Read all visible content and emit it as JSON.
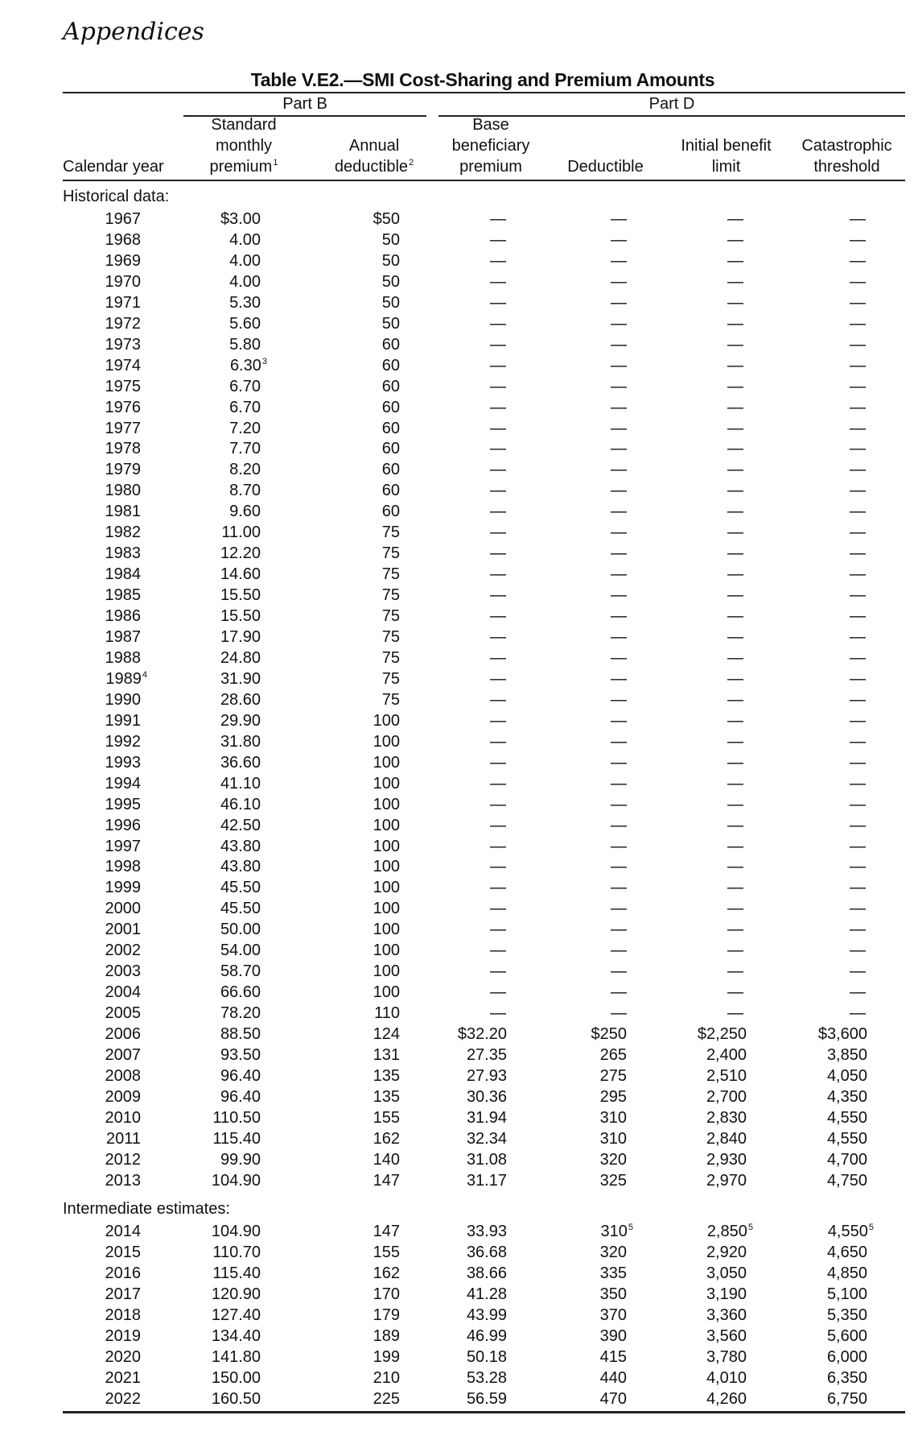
{
  "section_heading": "Appendices",
  "table": {
    "title": "Table V.E2.—SMI Cost-Sharing and Premium Amounts",
    "groups": {
      "part_b": "Part B",
      "part_d": "Part D"
    },
    "columns": {
      "year": "Calendar year",
      "std_premium": [
        "Standard",
        "monthly",
        "premium"
      ],
      "std_premium_note": "1",
      "annual_deductible": [
        "Annual",
        "deductible"
      ],
      "annual_deductible_note": "2",
      "base_premium": [
        "Base",
        "beneficiary",
        "premium"
      ],
      "deductible": "Deductible",
      "ibl": [
        "Initial benefit",
        "limit"
      ],
      "catastrophic": [
        "Catastrophic",
        "threshold"
      ]
    },
    "sections": [
      {
        "label": "Historical data:",
        "rows": [
          [
            "1967",
            "$3.00",
            "$50",
            null,
            null,
            null,
            null
          ],
          [
            "1968",
            "4.00",
            "50",
            null,
            null,
            null,
            null
          ],
          [
            "1969",
            "4.00",
            "50",
            null,
            null,
            null,
            null
          ],
          [
            "1970",
            "4.00",
            "50",
            null,
            null,
            null,
            null
          ],
          [
            "1971",
            "5.30",
            "50",
            null,
            null,
            null,
            null
          ],
          [
            "1972",
            "5.60",
            "50",
            null,
            null,
            null,
            null
          ],
          [
            "1973",
            "5.80",
            "60",
            null,
            null,
            null,
            null
          ],
          [
            "1974",
            "6.30^3",
            "60",
            null,
            null,
            null,
            null
          ],
          [
            "1975",
            "6.70",
            "60",
            null,
            null,
            null,
            null
          ],
          [
            "1976",
            "6.70",
            "60",
            null,
            null,
            null,
            null
          ],
          [
            "1977",
            "7.20",
            "60",
            null,
            null,
            null,
            null
          ],
          [
            "1978",
            "7.70",
            "60",
            null,
            null,
            null,
            null
          ],
          [
            "1979",
            "8.20",
            "60",
            null,
            null,
            null,
            null
          ],
          [
            "1980",
            "8.70",
            "60",
            null,
            null,
            null,
            null
          ],
          [
            "1981",
            "9.60",
            "60",
            null,
            null,
            null,
            null
          ],
          [
            "1982",
            "11.00",
            "75",
            null,
            null,
            null,
            null
          ],
          [
            "1983",
            "12.20",
            "75",
            null,
            null,
            null,
            null
          ],
          [
            "1984",
            "14.60",
            "75",
            null,
            null,
            null,
            null
          ],
          [
            "1985",
            "15.50",
            "75",
            null,
            null,
            null,
            null
          ],
          [
            "1986",
            "15.50",
            "75",
            null,
            null,
            null,
            null
          ],
          [
            "1987",
            "17.90",
            "75",
            null,
            null,
            null,
            null
          ],
          [
            "1988",
            "24.80",
            "75",
            null,
            null,
            null,
            null
          ],
          [
            "1989^4",
            "31.90",
            "75",
            null,
            null,
            null,
            null
          ],
          [
            "1990",
            "28.60",
            "75",
            null,
            null,
            null,
            null
          ],
          [
            "1991",
            "29.90",
            "100",
            null,
            null,
            null,
            null
          ],
          [
            "1992",
            "31.80",
            "100",
            null,
            null,
            null,
            null
          ],
          [
            "1993",
            "36.60",
            "100",
            null,
            null,
            null,
            null
          ],
          [
            "1994",
            "41.10",
            "100",
            null,
            null,
            null,
            null
          ],
          [
            "1995",
            "46.10",
            "100",
            null,
            null,
            null,
            null
          ],
          [
            "1996",
            "42.50",
            "100",
            null,
            null,
            null,
            null
          ],
          [
            "1997",
            "43.80",
            "100",
            null,
            null,
            null,
            null
          ],
          [
            "1998",
            "43.80",
            "100",
            null,
            null,
            null,
            null
          ],
          [
            "1999",
            "45.50",
            "100",
            null,
            null,
            null,
            null
          ],
          [
            "2000",
            "45.50",
            "100",
            null,
            null,
            null,
            null
          ],
          [
            "2001",
            "50.00",
            "100",
            null,
            null,
            null,
            null
          ],
          [
            "2002",
            "54.00",
            "100",
            null,
            null,
            null,
            null
          ],
          [
            "2003",
            "58.70",
            "100",
            null,
            null,
            null,
            null
          ],
          [
            "2004",
            "66.60",
            "100",
            null,
            null,
            null,
            null
          ],
          [
            "2005",
            "78.20",
            "110",
            null,
            null,
            null,
            null
          ],
          [
            "2006",
            "88.50",
            "124",
            "$32.20",
            "$250",
            "$2,250",
            "$3,600"
          ],
          [
            "2007",
            "93.50",
            "131",
            "27.35",
            "265",
            "2,400",
            "3,850"
          ],
          [
            "2008",
            "96.40",
            "135",
            "27.93",
            "275",
            "2,510",
            "4,050"
          ],
          [
            "2009",
            "96.40",
            "135",
            "30.36",
            "295",
            "2,700",
            "4,350"
          ],
          [
            "2010",
            "110.50",
            "155",
            "31.94",
            "310",
            "2,830",
            "4,550"
          ],
          [
            "2011",
            "115.40",
            "162",
            "32.34",
            "310",
            "2,840",
            "4,550"
          ],
          [
            "2012",
            "99.90",
            "140",
            "31.08",
            "320",
            "2,930",
            "4,700"
          ],
          [
            "2013",
            "104.90",
            "147",
            "31.17",
            "325",
            "2,970",
            "4,750"
          ]
        ]
      },
      {
        "label": "Intermediate estimates:",
        "rows": [
          [
            "2014",
            "104.90",
            "147",
            "33.93",
            "310^5",
            "2,850^5",
            "4,550^5"
          ],
          [
            "2015",
            "110.70",
            "155",
            "36.68",
            "320",
            "2,920",
            "4,650"
          ],
          [
            "2016",
            "115.40",
            "162",
            "38.66",
            "335",
            "3,050",
            "4,850"
          ],
          [
            "2017",
            "120.90",
            "170",
            "41.28",
            "350",
            "3,190",
            "5,100"
          ],
          [
            "2018",
            "127.40",
            "179",
            "43.99",
            "370",
            "3,360",
            "5,350"
          ],
          [
            "2019",
            "134.40",
            "189",
            "46.99",
            "390",
            "3,560",
            "5,600"
          ],
          [
            "2020",
            "141.80",
            "199",
            "50.18",
            "415",
            "3,780",
            "6,000"
          ],
          [
            "2021",
            "150.00",
            "210",
            "53.28",
            "440",
            "4,010",
            "6,350"
          ],
          [
            "2022",
            "160.50",
            "225",
            "56.59",
            "470",
            "4,260",
            "6,750"
          ]
        ]
      }
    ],
    "missing_symbol": "—"
  }
}
